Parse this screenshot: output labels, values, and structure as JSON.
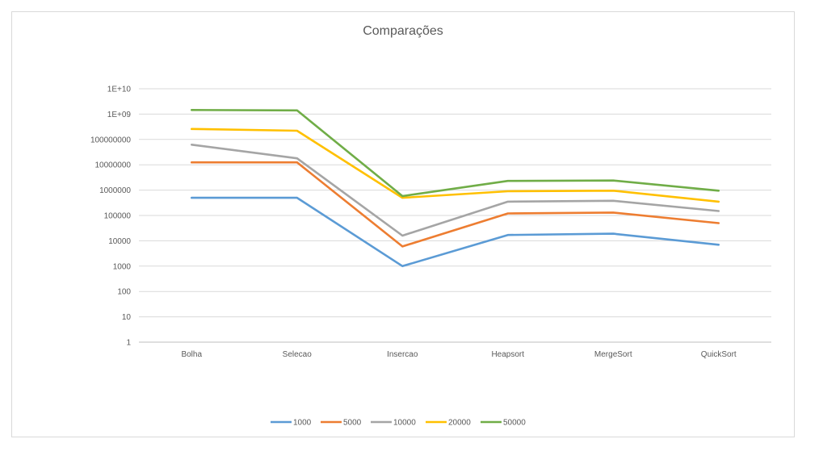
{
  "chart_data": {
    "type": "line",
    "title": "Comparações",
    "y_scale": "log",
    "ylim": [
      1,
      10000000000
    ],
    "y_ticks": [
      "1",
      "10",
      "100",
      "1000",
      "10000",
      "100000",
      "1000000",
      "10000000",
      "100000000",
      "1E+09",
      "1E+10"
    ],
    "categories": [
      "Bolha",
      "Selecao",
      "Insercao",
      "Heapsort",
      "MergeSort",
      "QuickSort"
    ],
    "grid": true,
    "legend_position": "bottom",
    "series": [
      {
        "name": "1000",
        "color": "#5b9bd5",
        "values": [
          499500,
          499500,
          1000,
          17000,
          19000,
          7000
        ]
      },
      {
        "name": "5000",
        "color": "#ed7d31",
        "values": [
          12500000,
          12500000,
          6000,
          120000,
          130000,
          50000
        ]
      },
      {
        "name": "10000",
        "color": "#a5a5a5",
        "values": [
          62000000,
          18000000,
          16000,
          350000,
          380000,
          150000
        ]
      },
      {
        "name": "20000",
        "color": "#ffc000",
        "values": [
          260000000,
          220000000,
          500000,
          900000,
          950000,
          350000
        ]
      },
      {
        "name": "50000",
        "color": "#70ad47",
        "values": [
          1450000000,
          1400000000,
          580000,
          2300000,
          2400000,
          950000
        ]
      }
    ]
  }
}
